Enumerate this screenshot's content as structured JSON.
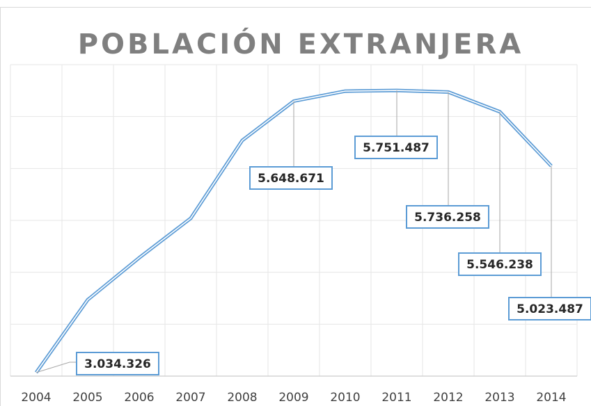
{
  "chart_data": {
    "type": "line",
    "title": "POBLACIÓN EXTRANJERA",
    "categories": [
      "2004",
      "2005",
      "2006",
      "2007",
      "2008",
      "2009",
      "2010",
      "2011",
      "2012",
      "2013",
      "2014"
    ],
    "series": [
      {
        "name": "Población extranjera",
        "color": "#5b9bd5",
        "values": [
          3034326,
          3735000,
          4140000,
          4520000,
          5270000,
          5648671,
          5745000,
          5751487,
          5736258,
          5546238,
          5023487
        ],
        "value_labels": [
          "3.034.326",
          null,
          null,
          null,
          null,
          "5.648.671",
          null,
          "5.751.487",
          "5.736.258",
          "5.546.238",
          "5.023.487"
        ]
      }
    ],
    "ylim": [
      3000000,
      6000000
    ],
    "yticks": [
      3000000,
      3500000,
      4000000,
      4500000,
      5000000,
      5500000,
      6000000
    ],
    "grid": true
  }
}
